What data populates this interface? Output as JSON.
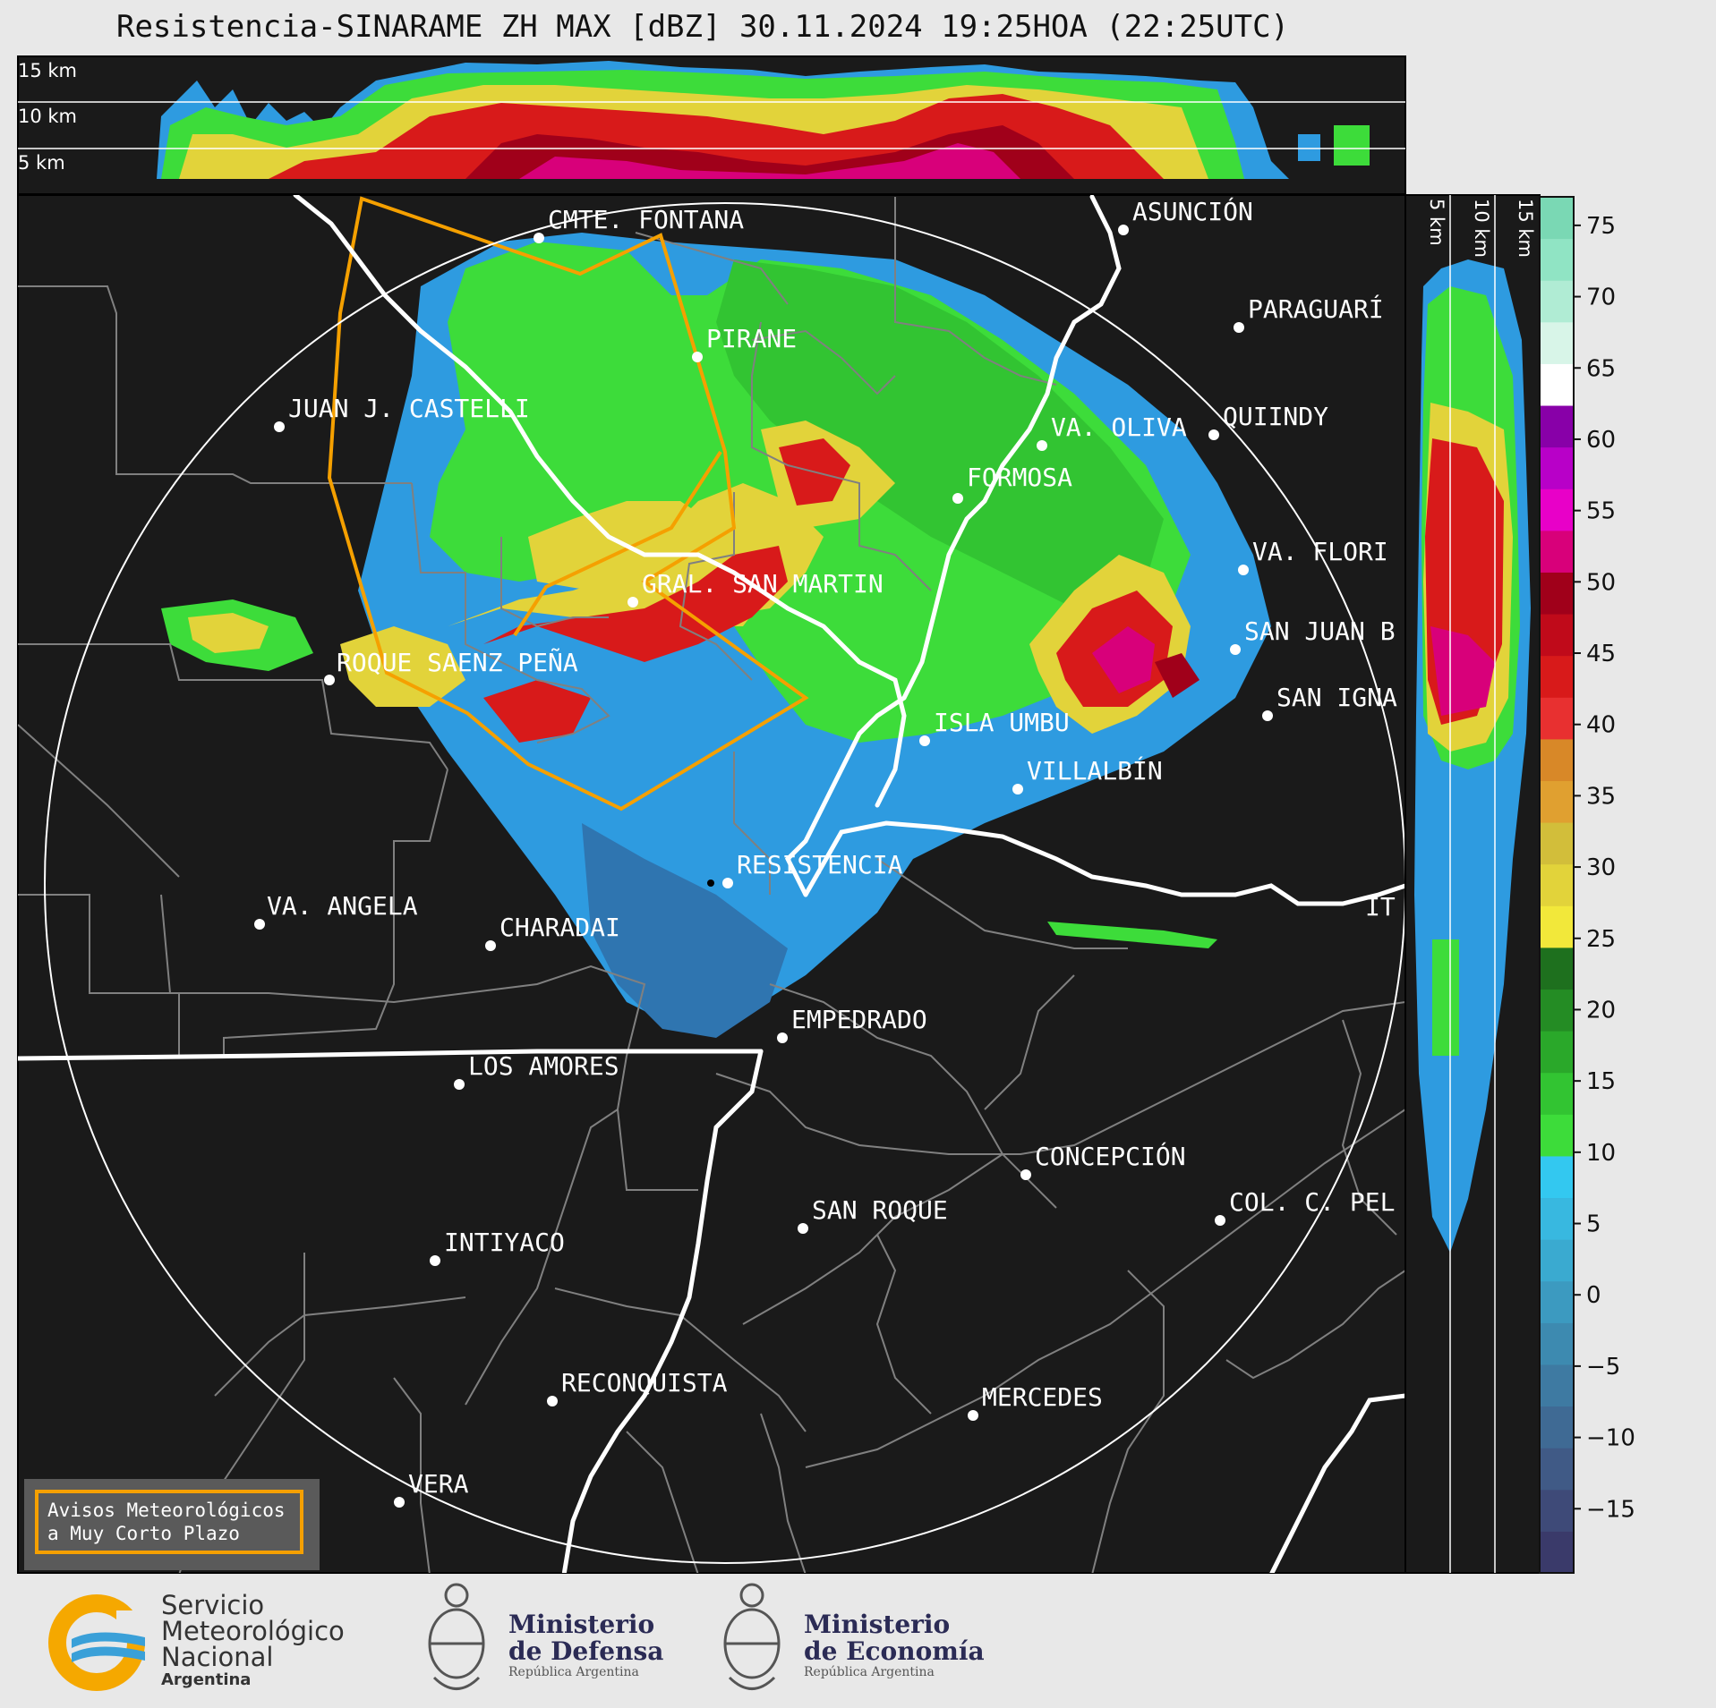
{
  "title": "Resistencia-SINARAME ZH MAX [dBZ] 30.11.2024 19:25HOA (22:25UTC)",
  "cross_section_top": {
    "labels": [
      "15 km",
      "10 km",
      "5 km"
    ]
  },
  "cross_section_right": {
    "labels": [
      "5 km",
      "10 km",
      "15 km"
    ]
  },
  "colorbar": {
    "ticks": [
      "75",
      "70",
      "65",
      "60",
      "55",
      "50",
      "45",
      "40",
      "35",
      "30",
      "25",
      "20",
      "15",
      "10",
      "5",
      "0",
      "−5",
      "−10",
      "−15"
    ],
    "colors": [
      "#3a3a6a",
      "#3e4a78",
      "#405a86",
      "#3f6a94",
      "#3e7aa2",
      "#3d8ab0",
      "#3c9ac0",
      "#3aaad0",
      "#38b8e0",
      "#33c8f0",
      "#3ddc3a",
      "#32c432",
      "#2aa82a",
      "#248c24",
      "#1e701e",
      "#f2e83a",
      "#e2d33a",
      "#d2be3a",
      "#e0a030",
      "#d88828",
      "#e83030",
      "#d81a1a",
      "#c00a1a",
      "#a0001a",
      "#d8007a",
      "#e800c8",
      "#b800c8",
      "#8800a8",
      "#ffffff",
      "#d8f5e8",
      "#b0ecd4",
      "#90e4c4",
      "#7ad8b4"
    ],
    "unit": "dBZ"
  },
  "cities": [
    {
      "name": "CMTE. FONTANA"
    },
    {
      "name": "ASUNCIÓN"
    },
    {
      "name": "PARAGUARÍ"
    },
    {
      "name": "PIRANE"
    },
    {
      "name": "JUAN J. CASTELLI"
    },
    {
      "name": "VA. OLIVA"
    },
    {
      "name": "QUIINDY"
    },
    {
      "name": "FORMOSA"
    },
    {
      "name": "VA. FLORI"
    },
    {
      "name": "GRAL. SAN MARTIN"
    },
    {
      "name": "SAN JUAN B"
    },
    {
      "name": "ROQUE SAENZ PEÑA"
    },
    {
      "name": "SAN IGNA"
    },
    {
      "name": "ISLA UMBU"
    },
    {
      "name": "VILLALBÍN"
    },
    {
      "name": "RESISTENCIA"
    },
    {
      "name": "VA. ANGELA"
    },
    {
      "name": "CHARADAI"
    },
    {
      "name": "IT"
    },
    {
      "name": "EMPEDRADO"
    },
    {
      "name": "LOS AMORES"
    },
    {
      "name": "CONCEPCIÓN"
    },
    {
      "name": "SAN ROQUE"
    },
    {
      "name": "COL. C. PEL"
    },
    {
      "name": "INTIYACO"
    },
    {
      "name": "RECONQUISTA"
    },
    {
      "name": "MERCEDES"
    },
    {
      "name": "VERA"
    }
  ],
  "warning_box": {
    "line1": "Avisos Meteorológicos",
    "line2": "a Muy Corto Plazo"
  },
  "footer": {
    "smn": {
      "line1": "Servicio",
      "line2": "Meteorológico",
      "line3": "Nacional",
      "line4": "Argentina"
    },
    "defensa": {
      "line1": "Ministerio",
      "line2": "de Defensa",
      "line3": "República Argentina"
    },
    "economia": {
      "line1": "Ministerio",
      "line2": "de Economía",
      "line3": "República Argentina"
    }
  }
}
